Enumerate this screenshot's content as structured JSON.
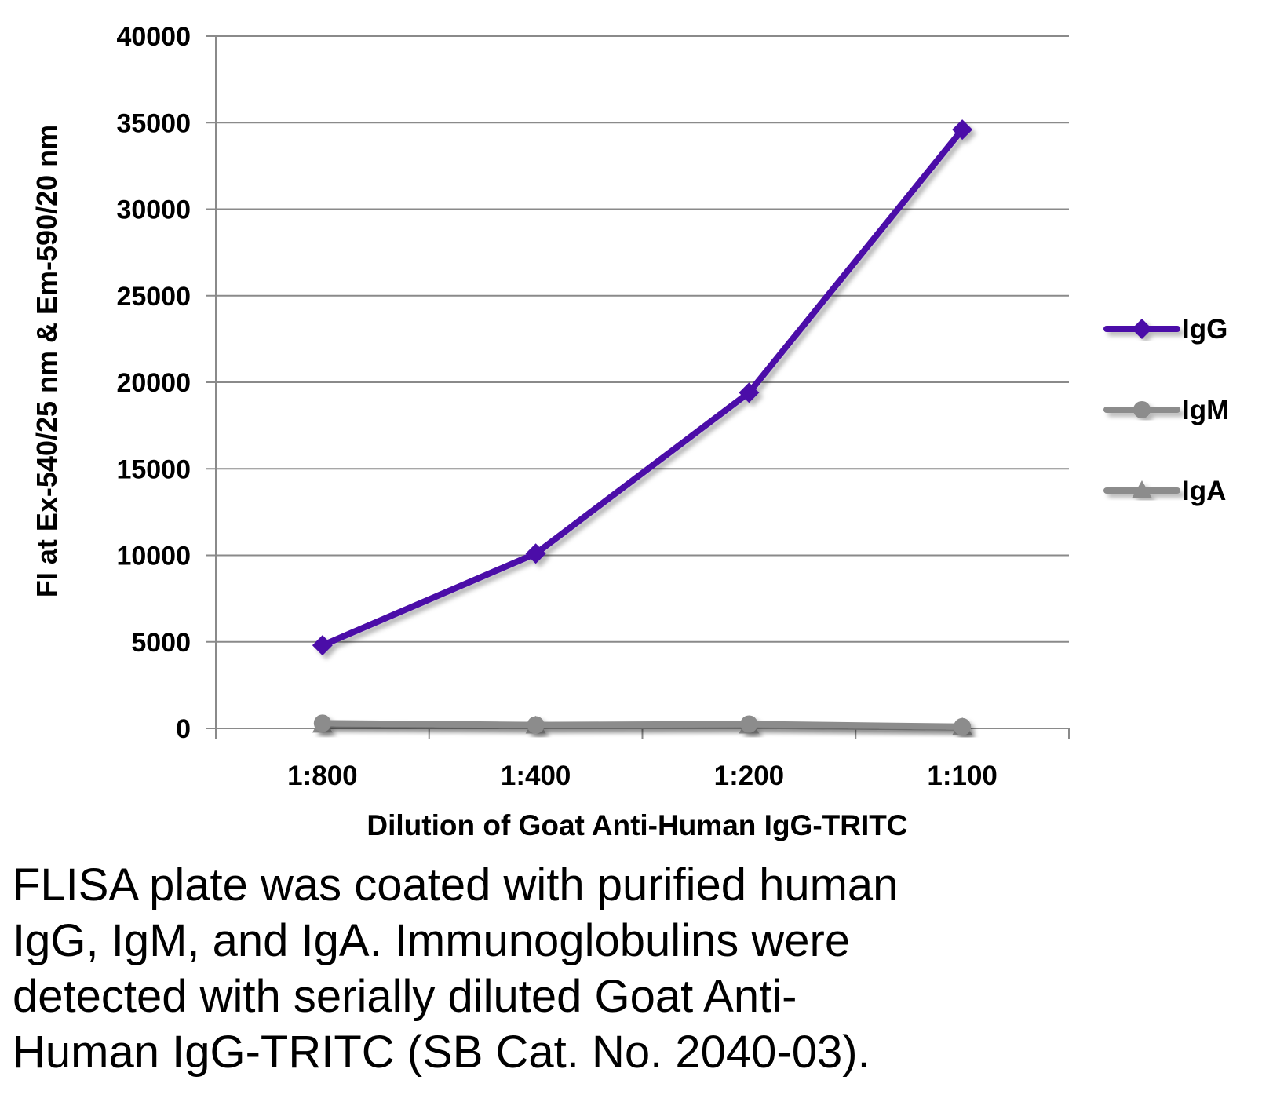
{
  "chart_data": {
    "type": "line",
    "categories": [
      "1:800",
      "1:400",
      "1:200",
      "1:100"
    ],
    "series": [
      {
        "name": "IgG",
        "values": [
          4800,
          10100,
          19400,
          34600
        ],
        "color": "#4b0fa8",
        "marker": "diamond"
      },
      {
        "name": "IgM",
        "values": [
          300,
          200,
          250,
          100
        ],
        "color": "#8c8c8c",
        "marker": "circle"
      },
      {
        "name": "IgA",
        "values": [
          200,
          150,
          150,
          50
        ],
        "color": "#8c8c8c",
        "marker": "triangle"
      }
    ],
    "ylim": [
      0,
      40000
    ],
    "yticks": [
      "0",
      "5000",
      "10000",
      "15000",
      "20000",
      "25000",
      "30000",
      "35000",
      "40000"
    ],
    "xlabel": "Dilution of Goat Anti-Human IgG-TRITC",
    "ylabel": "FI at Ex-540/25 nm & Em-590/20 nm",
    "grid": true,
    "legend_position": "right"
  },
  "caption": {
    "lines": [
      "FLISA plate was coated with purified human",
      "IgG, IgM, and IgA.  Immunoglobulins were",
      "detected with serially diluted Goat Anti-",
      "Human IgG-TRITC (SB Cat. No. 2040-03)."
    ]
  }
}
